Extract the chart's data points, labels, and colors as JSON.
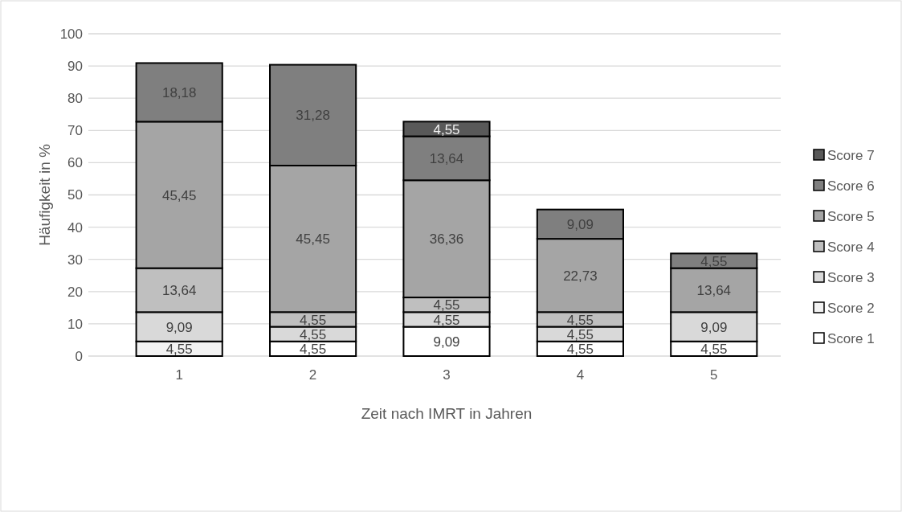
{
  "chart_data": {
    "type": "bar",
    "stacked": true,
    "xlabel": "Zeit nach IMRT in Jahren",
    "ylabel": "Häufigkeit in %",
    "categories": [
      "1",
      "2",
      "3",
      "4",
      "5"
    ],
    "ylim": [
      0,
      100
    ],
    "yticks": [
      0,
      10,
      20,
      30,
      40,
      50,
      60,
      70,
      80,
      90,
      100
    ],
    "grid": "y",
    "legend": "right",
    "series": [
      {
        "name": "Score 1",
        "color": "#ffffff",
        "values": [
          null,
          4.55,
          9.09,
          4.55,
          4.55
        ],
        "value_labels": [
          null,
          "4,55",
          "9,09",
          "4,55",
          "4,55"
        ]
      },
      {
        "name": "Score 2",
        "color": "#f2f2f2",
        "values": [
          4.55,
          null,
          null,
          null,
          null
        ],
        "value_labels": [
          "4,55",
          null,
          null,
          null,
          null
        ]
      },
      {
        "name": "Score 3",
        "color": "#d9d9d9",
        "values": [
          9.09,
          4.55,
          4.55,
          4.55,
          9.09
        ],
        "value_labels": [
          "9,09",
          "4,55",
          "4,55",
          "4,55",
          "9,09"
        ]
      },
      {
        "name": "Score 4",
        "color": "#bfbfbf",
        "values": [
          13.64,
          4.55,
          4.55,
          4.55,
          null
        ],
        "value_labels": [
          "13,64",
          "4,55",
          "4,55",
          "4,55",
          null
        ]
      },
      {
        "name": "Score 5",
        "color": "#a5a5a5",
        "values": [
          45.45,
          45.45,
          36.36,
          22.73,
          13.64
        ],
        "value_labels": [
          "45,45",
          "45,45",
          "36,36",
          "22,73",
          "13,64"
        ]
      },
      {
        "name": "Score 6",
        "color": "#7f7f7f",
        "values": [
          18.18,
          31.28,
          13.64,
          9.09,
          4.55
        ],
        "value_labels": [
          "18,18",
          "31,28",
          "13,64",
          "9,09",
          "4,55"
        ]
      },
      {
        "name": "Score 7",
        "color": "#595959",
        "values": [
          null,
          null,
          4.55,
          null,
          null
        ],
        "value_labels": [
          null,
          null,
          "4,55",
          null,
          null
        ]
      }
    ]
  }
}
